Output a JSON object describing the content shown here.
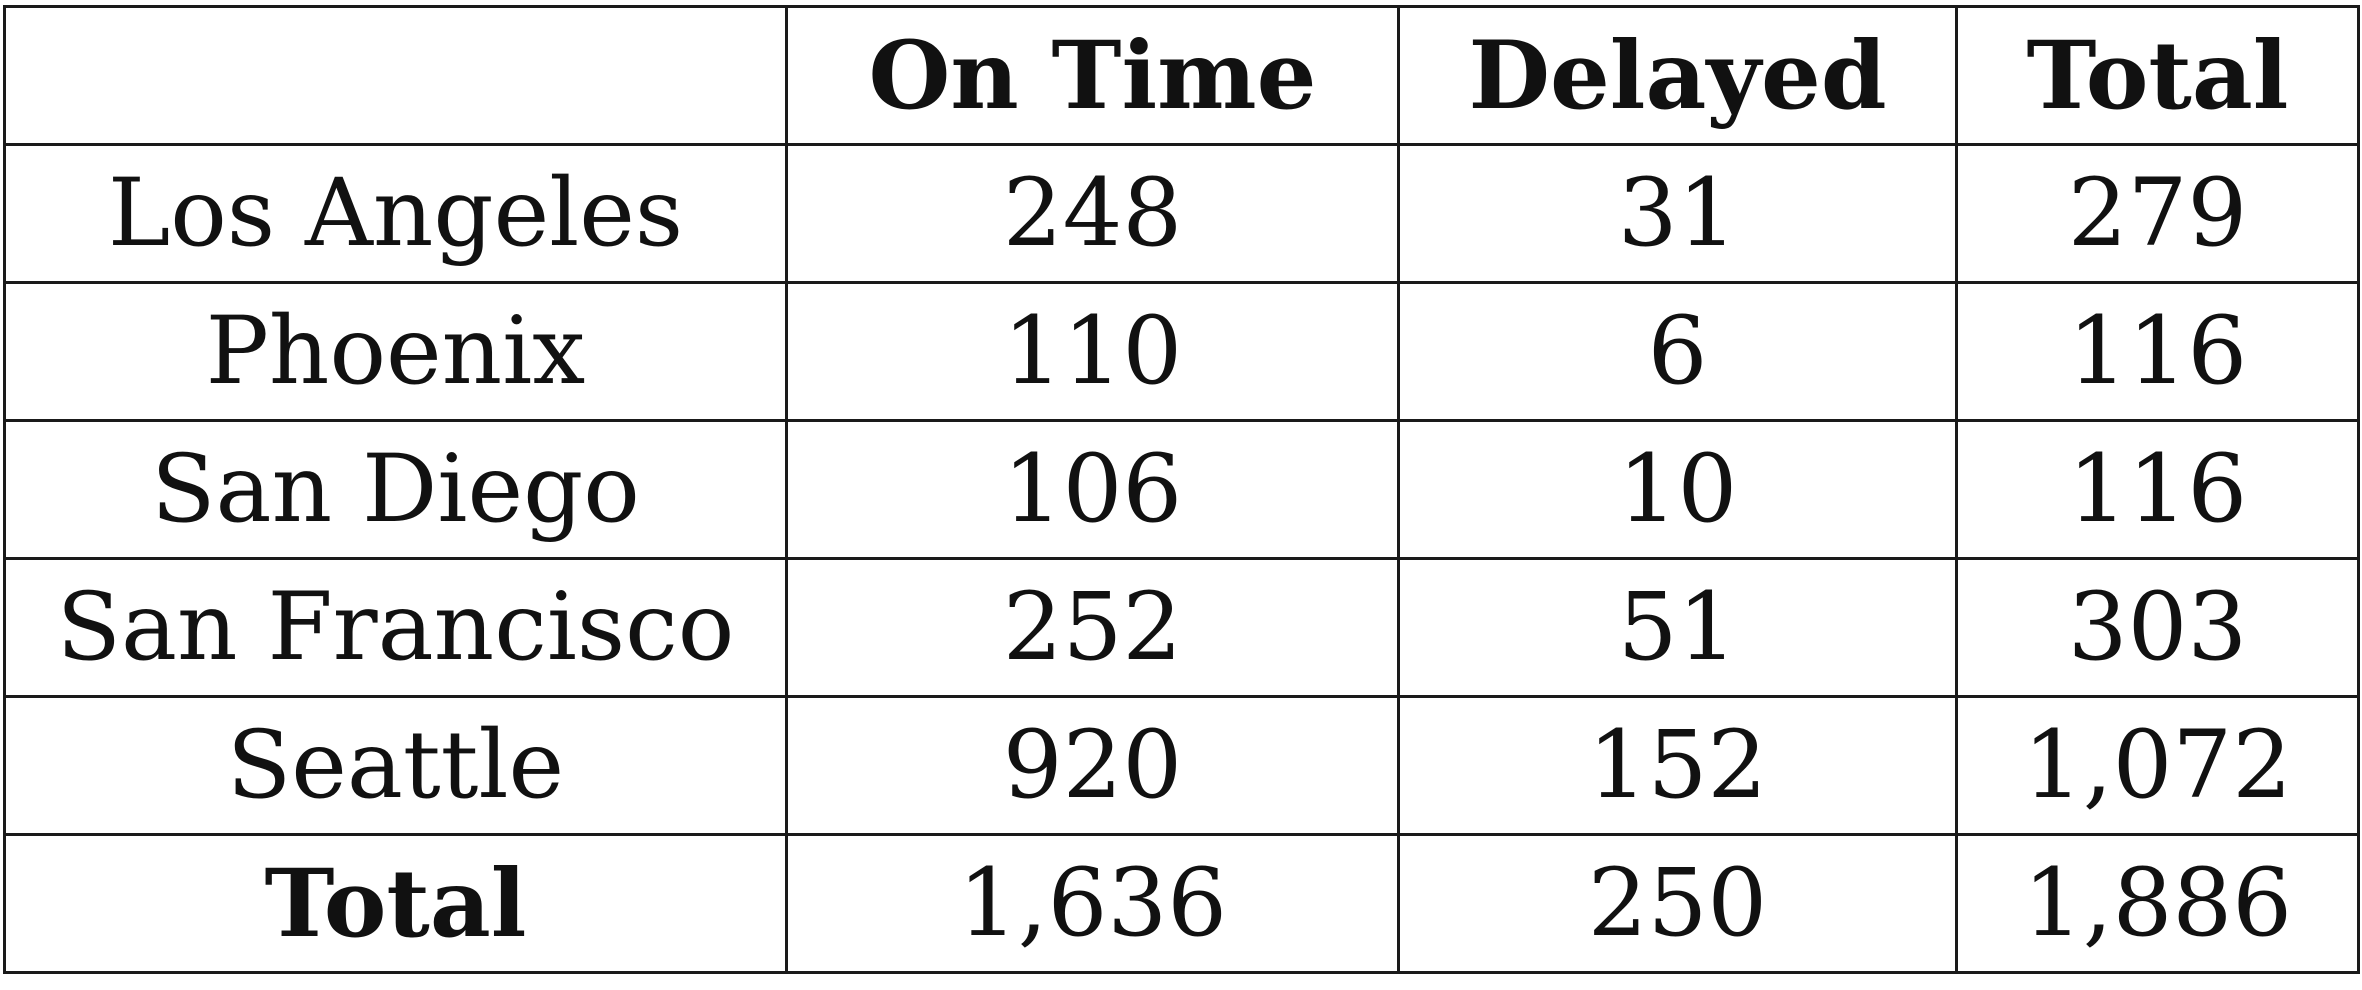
{
  "table": {
    "corner": "",
    "columns": [
      "On Time",
      "Delayed",
      "Total"
    ],
    "rows": [
      {
        "label": "Los Angeles",
        "on_time": "248",
        "delayed": "31",
        "total": "279"
      },
      {
        "label": "Phoenix",
        "on_time": "110",
        "delayed": "6",
        "total": "116"
      },
      {
        "label": "San Diego",
        "on_time": "106",
        "delayed": "10",
        "total": "116"
      },
      {
        "label": "San Francisco",
        "on_time": "252",
        "delayed": "51",
        "total": "303"
      },
      {
        "label": "Seattle",
        "on_time": "920",
        "delayed": "152",
        "total": "1,072"
      }
    ],
    "totals": {
      "label": "Total",
      "on_time": "1,636",
      "delayed": "250",
      "total": "1,886"
    }
  }
}
